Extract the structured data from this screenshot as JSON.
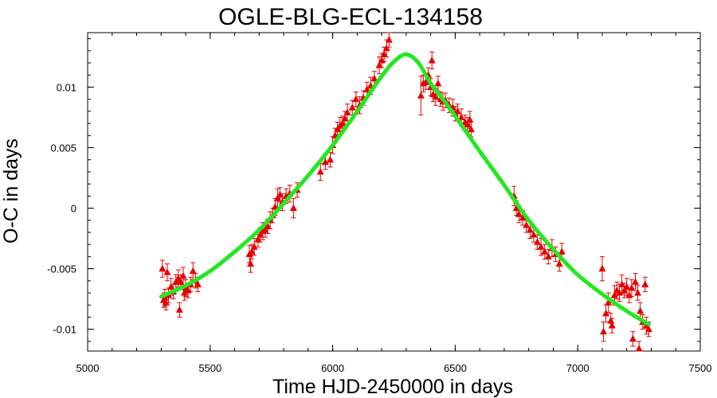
{
  "chart_data": {
    "type": "scatter",
    "title": "OGLE-BLG-ECL-134158",
    "xlabel": "Time HJD-2450000 in days",
    "ylabel": "O-C in days",
    "xlim": [
      5000,
      7500
    ],
    "ylim": [
      -0.0118,
      0.0145
    ],
    "xticks": [
      5000,
      5500,
      6000,
      6500,
      7000,
      7500
    ],
    "xtick_labels": [
      "5000",
      "5500",
      "6000",
      "6500",
      "7000",
      "7500"
    ],
    "yticks": [
      -0.01,
      -0.005,
      0,
      0.005,
      0.01
    ],
    "ytick_labels": [
      "-0.01",
      "-0.005",
      "0",
      "0.005",
      "0.01"
    ],
    "grid": false,
    "colors": {
      "points": "#e60000",
      "errorbars": "#e60000",
      "fit": "#22e822",
      "axes": "#000000"
    },
    "series": [
      {
        "kind": "points-with-errorbars",
        "marker": "triangle",
        "points": [
          [
            5305,
            -0.005,
            0.0007
          ],
          [
            5310,
            -0.0076,
            0.0006
          ],
          [
            5315,
            -0.0074,
            0.0007
          ],
          [
            5320,
            -0.0078,
            0.0006
          ],
          [
            5325,
            -0.0053,
            0.0007
          ],
          [
            5330,
            -0.0072,
            0.0006
          ],
          [
            5340,
            -0.0065,
            0.0007
          ],
          [
            5350,
            -0.0069,
            0.0006
          ],
          [
            5360,
            -0.0061,
            0.0006
          ],
          [
            5370,
            -0.0058,
            0.0007
          ],
          [
            5375,
            -0.0084,
            0.0006
          ],
          [
            5380,
            -0.0061,
            0.0006
          ],
          [
            5390,
            -0.0056,
            0.0007
          ],
          [
            5395,
            -0.007,
            0.0006
          ],
          [
            5400,
            -0.0066,
            0.0007
          ],
          [
            5410,
            -0.0068,
            0.0006
          ],
          [
            5420,
            -0.0063,
            0.0006
          ],
          [
            5430,
            -0.0052,
            0.0007
          ],
          [
            5440,
            -0.006,
            0.0006
          ],
          [
            5450,
            -0.0063,
            0.0006
          ],
          [
            5660,
            -0.0038,
            0.0007
          ],
          [
            5665,
            -0.0046,
            0.0007
          ],
          [
            5670,
            -0.0036,
            0.0006
          ],
          [
            5680,
            -0.0032,
            0.0007
          ],
          [
            5695,
            -0.0026,
            0.0006
          ],
          [
            5705,
            -0.0022,
            0.0006
          ],
          [
            5715,
            -0.0019,
            0.0007
          ],
          [
            5725,
            -0.0018,
            0.0006
          ],
          [
            5735,
            -0.0015,
            0.0006
          ],
          [
            5745,
            -0.001,
            0.0007
          ],
          [
            5755,
            -0.0006,
            0.0006
          ],
          [
            5765,
            0.0001,
            0.0007
          ],
          [
            5775,
            0.0008,
            0.0008
          ],
          [
            5785,
            0.0011,
            0.0006
          ],
          [
            5795,
            0.0005,
            0.0007
          ],
          [
            5810,
            0.001,
            0.0006
          ],
          [
            5825,
            0.0012,
            0.0007
          ],
          [
            5840,
            0.0,
            0.0008
          ],
          [
            5855,
            0.0015,
            0.0006
          ],
          [
            5950,
            0.003,
            0.0007
          ],
          [
            5970,
            0.0038,
            0.0006
          ],
          [
            5990,
            0.004,
            0.0006
          ],
          [
            6000,
            0.0052,
            0.0007
          ],
          [
            6010,
            0.006,
            0.0006
          ],
          [
            6020,
            0.0065,
            0.0006
          ],
          [
            6030,
            0.0068,
            0.0007
          ],
          [
            6040,
            0.007,
            0.0006
          ],
          [
            6050,
            0.0074,
            0.0006
          ],
          [
            6060,
            0.0079,
            0.0007
          ],
          [
            6080,
            0.0083,
            0.0006
          ],
          [
            6095,
            0.009,
            0.0006
          ],
          [
            6110,
            0.0085,
            0.0007
          ],
          [
            6125,
            0.0091,
            0.0006
          ],
          [
            6140,
            0.0098,
            0.0006
          ],
          [
            6155,
            0.0101,
            0.0007
          ],
          [
            6170,
            0.0107,
            0.0006
          ],
          [
            6190,
            0.0118,
            0.0007
          ],
          [
            6200,
            0.0122,
            0.0006
          ],
          [
            6210,
            0.0127,
            0.0006
          ],
          [
            6220,
            0.0132,
            0.0007
          ],
          [
            6230,
            0.0139,
            0.0006
          ],
          [
            6360,
            0.0093,
            0.0016
          ],
          [
            6370,
            0.0103,
            0.0007
          ],
          [
            6380,
            0.0104,
            0.0006
          ],
          [
            6390,
            0.011,
            0.0006
          ],
          [
            6400,
            0.01,
            0.0007
          ],
          [
            6405,
            0.0122,
            0.0007
          ],
          [
            6410,
            0.0094,
            0.0006
          ],
          [
            6420,
            0.0092,
            0.0007
          ],
          [
            6430,
            0.0103,
            0.0006
          ],
          [
            6440,
            0.009,
            0.0006
          ],
          [
            6450,
            0.0088,
            0.0007
          ],
          [
            6460,
            0.0089,
            0.0006
          ],
          [
            6475,
            0.0085,
            0.0006
          ],
          [
            6490,
            0.0083,
            0.0007
          ],
          [
            6500,
            0.0078,
            0.0006
          ],
          [
            6510,
            0.008,
            0.0006
          ],
          [
            6525,
            0.0075,
            0.0007
          ],
          [
            6540,
            0.0071,
            0.0006
          ],
          [
            6550,
            0.0069,
            0.0006
          ],
          [
            6560,
            0.0073,
            0.0007
          ],
          [
            6565,
            0.0065,
            0.0006
          ],
          [
            6740,
            0.001,
            0.0008
          ],
          [
            6750,
            0.0,
            0.0006
          ],
          [
            6760,
            -0.0005,
            0.0007
          ],
          [
            6775,
            -0.0008,
            0.0006
          ],
          [
            6790,
            -0.0014,
            0.0006
          ],
          [
            6805,
            -0.0018,
            0.0007
          ],
          [
            6820,
            -0.0022,
            0.0006
          ],
          [
            6835,
            -0.0028,
            0.0006
          ],
          [
            6850,
            -0.0032,
            0.0007
          ],
          [
            6865,
            -0.0036,
            0.0006
          ],
          [
            6880,
            -0.004,
            0.0006
          ],
          [
            6895,
            -0.0033,
            0.0007
          ],
          [
            6910,
            -0.0038,
            0.0006
          ],
          [
            6925,
            -0.0046,
            0.0006
          ],
          [
            6935,
            -0.0036,
            0.0007
          ],
          [
            7100,
            -0.005,
            0.001
          ],
          [
            7105,
            -0.0102,
            0.0008
          ],
          [
            7115,
            -0.0087,
            0.0007
          ],
          [
            7125,
            -0.0078,
            0.0008
          ],
          [
            7135,
            -0.0093,
            0.0006
          ],
          [
            7140,
            -0.0097,
            0.0006
          ],
          [
            7150,
            -0.0072,
            0.0008
          ],
          [
            7160,
            -0.0068,
            0.0007
          ],
          [
            7170,
            -0.007,
            0.0007
          ],
          [
            7180,
            -0.0063,
            0.0008
          ],
          [
            7190,
            -0.0068,
            0.0006
          ],
          [
            7200,
            -0.0065,
            0.0007
          ],
          [
            7210,
            -0.0072,
            0.0006
          ],
          [
            7220,
            -0.0066,
            0.0007
          ],
          [
            7225,
            -0.0108,
            0.0006
          ],
          [
            7235,
            -0.0061,
            0.0007
          ],
          [
            7245,
            -0.007,
            0.0006
          ],
          [
            7250,
            -0.0116,
            0.0006
          ],
          [
            7255,
            -0.0085,
            0.0007
          ],
          [
            7265,
            -0.0094,
            0.0006
          ],
          [
            7275,
            -0.0063,
            0.0006
          ],
          [
            7280,
            -0.0097,
            0.0007
          ],
          [
            7290,
            -0.01,
            0.0006
          ]
        ]
      },
      {
        "kind": "fit-curve",
        "points": [
          [
            5300,
            -0.0073
          ],
          [
            5400,
            -0.0064
          ],
          [
            5500,
            -0.0052
          ],
          [
            5600,
            -0.0036
          ],
          [
            5700,
            -0.0018
          ],
          [
            5800,
            0.0004
          ],
          [
            5900,
            0.0027
          ],
          [
            6000,
            0.0052
          ],
          [
            6100,
            0.008
          ],
          [
            6200,
            0.0109
          ],
          [
            6250,
            0.0121
          ],
          [
            6300,
            0.0127
          ],
          [
            6350,
            0.012
          ],
          [
            6400,
            0.0103
          ],
          [
            6450,
            0.009
          ],
          [
            6500,
            0.0076
          ],
          [
            6600,
            0.0047
          ],
          [
            6700,
            0.0019
          ],
          [
            6800,
            -0.001
          ],
          [
            6900,
            -0.0034
          ],
          [
            7000,
            -0.0055
          ],
          [
            7100,
            -0.0071
          ],
          [
            7200,
            -0.0085
          ],
          [
            7290,
            -0.0096
          ]
        ]
      }
    ]
  }
}
